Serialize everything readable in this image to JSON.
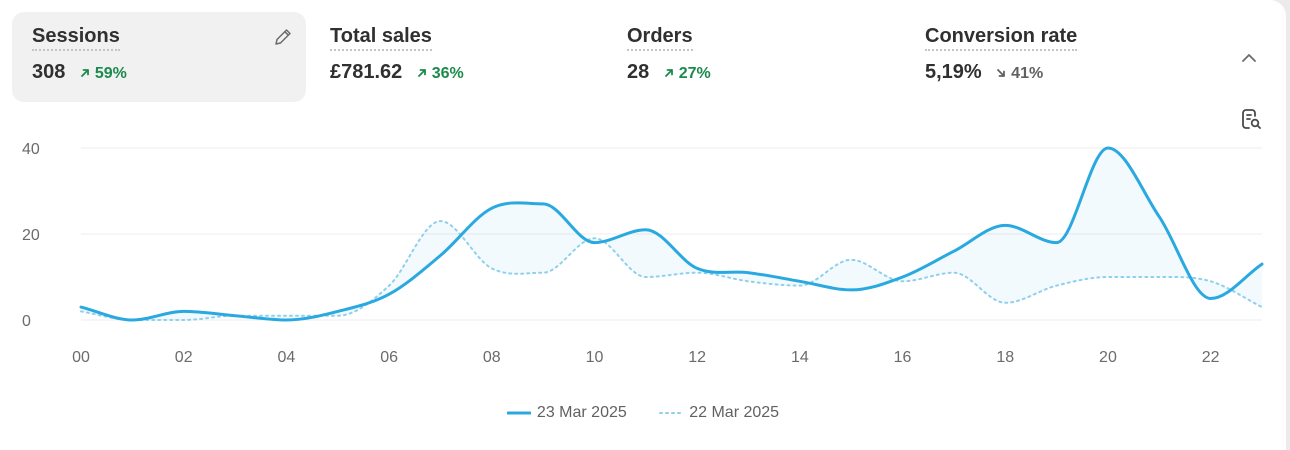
{
  "metrics": [
    {
      "label": "Sessions",
      "value": "308",
      "delta": "59%",
      "direction": "up",
      "active": true
    },
    {
      "label": "Total sales",
      "value": "£781.62",
      "delta": "36%",
      "direction": "up",
      "active": false
    },
    {
      "label": "Orders",
      "value": "28",
      "delta": "27%",
      "direction": "up",
      "active": false
    },
    {
      "label": "Conversion rate",
      "value": "5,19%",
      "delta": "41%",
      "direction": "down",
      "active": false
    }
  ],
  "icons": {
    "edit": "pencil-icon",
    "collapse": "chevron-up-icon",
    "report": "report-search-icon"
  },
  "colors": {
    "primary_series": "#2aa9e0",
    "comparison_series": "#8fd0ec",
    "positive_delta": "#1b8a4b",
    "negative_delta": "#616161"
  },
  "chart_data": {
    "type": "line",
    "x": [
      0,
      1,
      2,
      3,
      4,
      5,
      6,
      7,
      8,
      9,
      10,
      11,
      12,
      13,
      14,
      15,
      16,
      17,
      18,
      19,
      20,
      21,
      22,
      23
    ],
    "x_tick_labels": [
      "00",
      "02",
      "04",
      "06",
      "08",
      "10",
      "12",
      "14",
      "16",
      "18",
      "20",
      "22"
    ],
    "x_tick_values": [
      0,
      2,
      4,
      6,
      8,
      10,
      12,
      14,
      16,
      18,
      20,
      22
    ],
    "y_ticks": [
      0,
      20,
      40
    ],
    "ylim": [
      0,
      40
    ],
    "grid": true,
    "legend_position": "bottom-center",
    "series": [
      {
        "name": "23 Mar 2025",
        "style": "solid",
        "values": [
          3,
          0,
          2,
          1,
          0,
          2,
          6,
          15,
          26,
          27,
          18,
          21,
          12,
          11,
          9,
          7,
          10,
          16,
          22,
          18,
          40,
          24,
          5,
          13
        ]
      },
      {
        "name": "22 Mar 2025",
        "style": "dotted",
        "values": [
          2,
          0,
          0,
          1,
          1,
          1,
          8,
          23,
          12,
          11,
          19,
          10,
          11,
          9,
          8,
          14,
          9,
          11,
          4,
          8,
          10,
          10,
          9,
          3
        ]
      }
    ]
  }
}
